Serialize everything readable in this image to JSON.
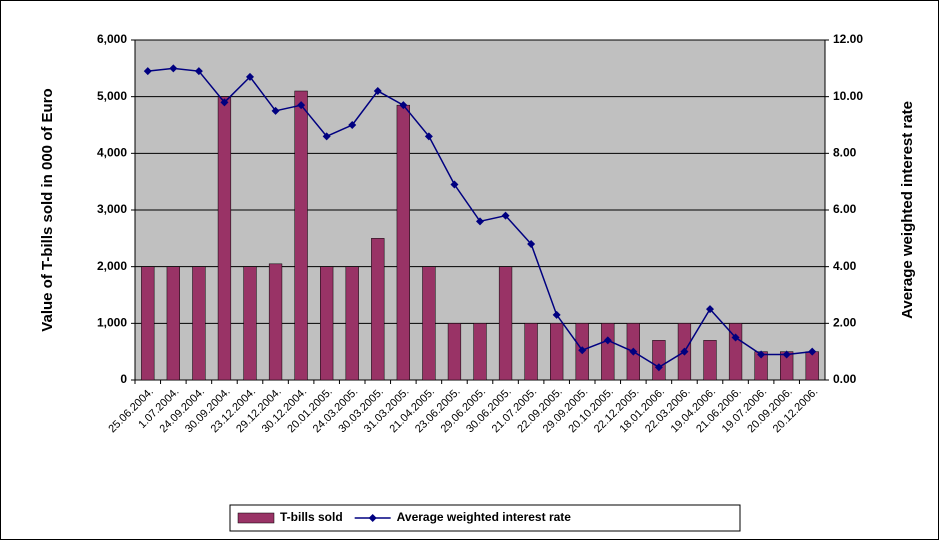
{
  "chart_data": {
    "type": "bar_line",
    "y_label": "Value of T-bills sold in 000 of Euro",
    "y2_label": "Average weighted interest rate",
    "categories": [
      "25.06.2004.",
      "1.07.2004.",
      "24.09.2004.",
      "30.09.2004.",
      "23.12.2004.",
      "29.12.2004.",
      "30.12.2004.",
      "20.01.2005.",
      "24.03.2005.",
      "30.03.2005.",
      "31.03.2005.",
      "21.04.2005.",
      "23.06.2005.",
      "29.06.2005.",
      "30.06.2005.",
      "21.07.2005.",
      "22.09.2005.",
      "29.09.2005.",
      "20.10.2005.",
      "22.12.2005.",
      "18.01.2006.",
      "22.03.2006.",
      "19.04.2006.",
      "21.06.2006.",
      "19.07.2006.",
      "20.09.2006.",
      "20.12.2006."
    ],
    "series": [
      {
        "name": "T-bills sold",
        "type": "bar",
        "color": "#993366",
        "values": [
          2000,
          2000,
          2000,
          5000,
          2000,
          2050,
          5100,
          2000,
          2000,
          2500,
          4850,
          2000,
          1000,
          1000,
          2000,
          1000,
          1000,
          1000,
          1000,
          1000,
          700,
          1000,
          700,
          1000,
          500,
          500,
          500
        ]
      },
      {
        "name": "Average weighted interest rate",
        "type": "line",
        "axis": "y2",
        "color": "#000080",
        "values": [
          10.9,
          11.0,
          10.9,
          9.8,
          10.7,
          9.5,
          9.7,
          8.6,
          9.0,
          10.2,
          9.7,
          8.6,
          6.9,
          5.6,
          5.8,
          4.8,
          2.3,
          1.05,
          1.4,
          1.0,
          0.45,
          1.0,
          2.5,
          1.5,
          0.9,
          0.9,
          1.0
        ]
      }
    ],
    "ylim": [
      0,
      6000
    ],
    "yticks": [
      0,
      {
        "value": 1000,
        "label": "1,000"
      },
      {
        "value": 2000,
        "label": "2,000"
      },
      {
        "value": 3000,
        "label": "3,000"
      },
      {
        "value": 4000,
        "label": "4,000"
      },
      {
        "value": 5000,
        "label": "5,000"
      },
      {
        "value": 6000,
        "label": "6,000"
      }
    ],
    "y2lim": [
      0,
      12
    ],
    "y2ticks": [
      {
        "value": 0,
        "label": "0.00"
      },
      {
        "value": 2,
        "label": "2.00"
      },
      {
        "value": 4,
        "label": "4.00"
      },
      {
        "value": 6,
        "label": "6.00"
      },
      {
        "value": 8,
        "label": "8.00"
      },
      {
        "value": 10,
        "label": "10.00"
      },
      {
        "value": 12,
        "label": "12.00"
      }
    ],
    "grid": true,
    "legend": "bottom"
  }
}
